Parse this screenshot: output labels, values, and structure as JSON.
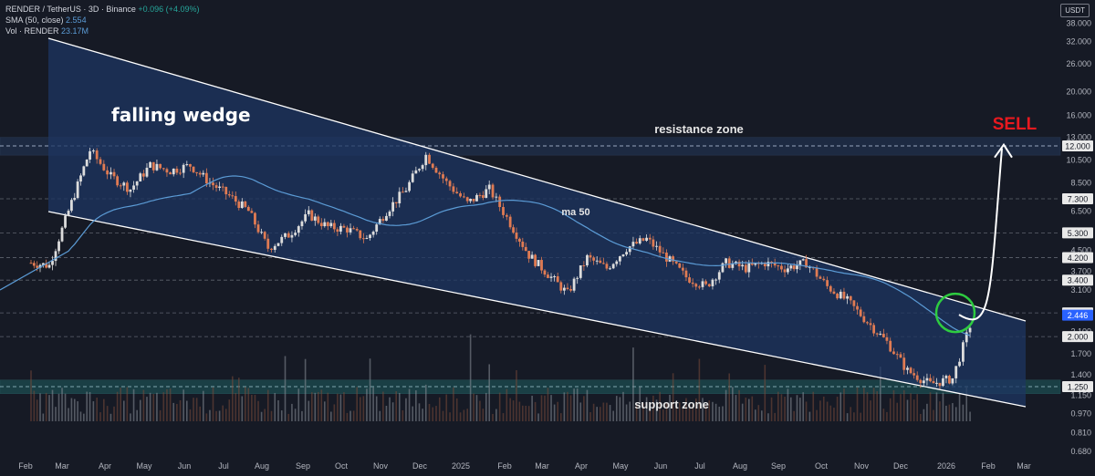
{
  "header": {
    "symbol_line": "RENDER / TetherUS · 3D · Binance",
    "change": "+0.096 (+4.09%)",
    "sma_label": "SMA (50, close)",
    "sma_value": "2.554",
    "vol_label": "Vol · RENDER",
    "vol_value": "23.17M",
    "currency": "USDT"
  },
  "colors": {
    "background": "#161a25",
    "up": "#dcdcdc",
    "down": "#e07b53",
    "wedge_fill": "#1e3561",
    "ma": "#5b9bd5",
    "sell": "#e8191f",
    "circle": "#2ecc40"
  },
  "chart_data": {
    "type": "candlestick",
    "y_scale": "log",
    "ylim": [
      0.6,
      40
    ],
    "price_ticks": [
      "38.000",
      "32.000",
      "26.000",
      "20.000",
      "16.000",
      "13.000",
      "10.500",
      "8.500",
      "6.500",
      "5.300",
      "4.500",
      "3.700",
      "3.100",
      "2.500",
      "2.100",
      "1.700",
      "1.400",
      "1.150",
      "0.970",
      "0.810",
      "0.680"
    ],
    "tagged_levels": [
      "12.000",
      "7.300",
      "5.300",
      "4.200",
      "3.400",
      "2.500",
      "2.446",
      "2.000",
      "1.250"
    ],
    "current_price": "2.446",
    "time_labels": [
      "Feb",
      "Mar",
      "Apr",
      "May",
      "Jun",
      "Jul",
      "Aug",
      "Sep",
      "Oct",
      "Nov",
      "Dec",
      "2025",
      "Feb",
      "Mar",
      "Apr",
      "May",
      "Jun",
      "Jul",
      "Aug",
      "Sep",
      "Oct",
      "Nov",
      "Dec",
      "2026",
      "Feb",
      "Mar"
    ],
    "price_path": [
      [
        "Feb",
        4.0
      ],
      [
        "Feb",
        3.9
      ],
      [
        "Mar",
        6.5
      ],
      [
        "Mar",
        11.5
      ],
      [
        "Apr",
        9.0
      ],
      [
        "Apr",
        8.0
      ],
      [
        "May",
        10.0
      ],
      [
        "May",
        9.5
      ],
      [
        "Jun",
        10.0
      ],
      [
        "Jun",
        8.5
      ],
      [
        "Jul",
        7.5
      ],
      [
        "Jul",
        6.5
      ],
      [
        "Aug",
        4.6
      ],
      [
        "Aug",
        5.2
      ],
      [
        "Sep",
        6.3
      ],
      [
        "Sep",
        5.6
      ],
      [
        "Oct",
        5.5
      ],
      [
        "Oct",
        5.0
      ],
      [
        "Nov",
        6.5
      ],
      [
        "Nov",
        8.0
      ],
      [
        "Dec",
        11.0
      ],
      [
        "Dec",
        8.5
      ],
      [
        "2025",
        7.0
      ],
      [
        "2025",
        8.0
      ],
      [
        "Feb",
        5.8
      ],
      [
        "Feb",
        4.3
      ],
      [
        "Mar",
        3.6
      ],
      [
        "Mar",
        3.0
      ],
      [
        "Apr",
        4.2
      ],
      [
        "Apr",
        3.8
      ],
      [
        "May",
        4.6
      ],
      [
        "May",
        5.0
      ],
      [
        "Jun",
        4.2
      ],
      [
        "Jun",
        3.5
      ],
      [
        "Jul",
        3.2
      ],
      [
        "Jul",
        4.0
      ],
      [
        "Aug",
        3.8
      ],
      [
        "Aug",
        4.0
      ],
      [
        "Sep",
        3.8
      ],
      [
        "Sep",
        4.0
      ],
      [
        "Oct",
        3.2
      ],
      [
        "Oct",
        2.8
      ],
      [
        "Nov",
        2.3
      ],
      [
        "Nov",
        1.9
      ],
      [
        "Dec",
        1.45
      ],
      [
        "Dec",
        1.28
      ],
      [
        "2026",
        1.35
      ],
      [
        "2026",
        2.45
      ]
    ]
  },
  "annotations": {
    "falling_wedge": "falling wedge",
    "resistance": "resistance zone",
    "support": "support zone",
    "ma": "ma 50",
    "sell": "SELL"
  }
}
